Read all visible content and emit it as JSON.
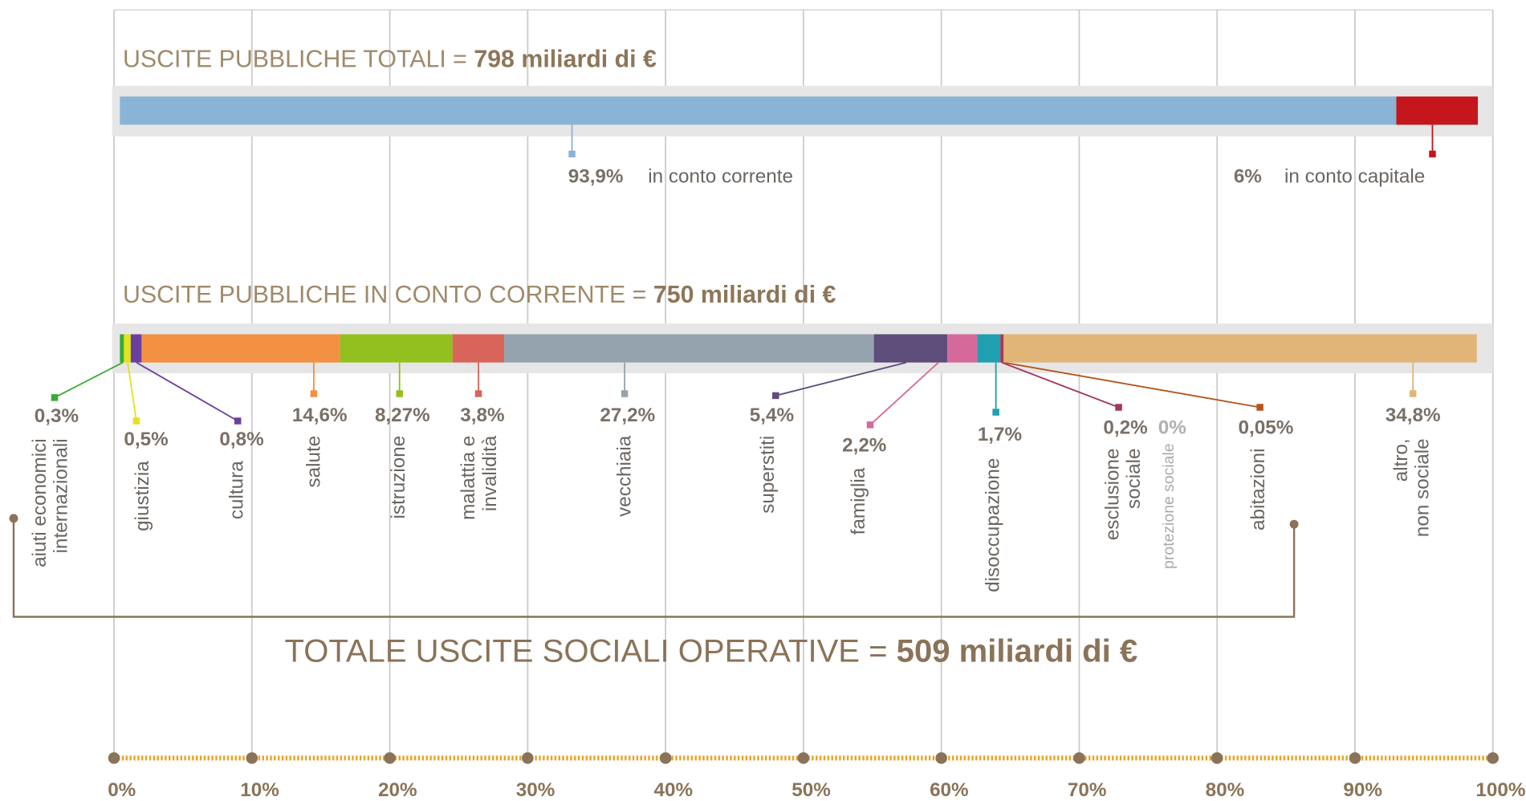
{
  "chart_data": [
    {
      "type": "stacked_bar",
      "title": "USCITE PUBBLICHE TOTALI =",
      "total": "798 miliardi di €",
      "xlim": [
        0,
        100
      ],
      "series": [
        {
          "name": "in conto corrente",
          "color": "#8ab4d6",
          "values": [
            93.9
          ],
          "value_labels": [
            "93,9%"
          ]
        },
        {
          "name": "in conto capitale",
          "color": "#c4161c",
          "values": [
            6
          ],
          "value_labels": [
            "6%"
          ]
        }
      ]
    },
    {
      "type": "stacked_bar",
      "title": "USCITE PUBBLICHE IN CONTO CORRENTE =",
      "total": "750 miliardi di €",
      "xlim": [
        0,
        100
      ],
      "xticks": [
        {
          "value": 0,
          "label": "0%"
        },
        {
          "value": 10,
          "label": "10%"
        },
        {
          "value": 20,
          "label": "20%"
        },
        {
          "value": 30,
          "label": "30%"
        },
        {
          "value": 40,
          "label": "40%"
        },
        {
          "value": 50,
          "label": "50%"
        },
        {
          "value": 60,
          "label": "60%"
        },
        {
          "value": 70,
          "label": "70%"
        },
        {
          "value": 80,
          "label": "80%"
        },
        {
          "value": 90,
          "label": "90%"
        },
        {
          "value": 100,
          "label": "100%"
        }
      ],
      "series": [
        {
          "name": "aiuti economici\ninternazionali",
          "color": "#3aaa35",
          "values": [
            0.3
          ],
          "value_labels": [
            "0,3%"
          ]
        },
        {
          "name": "giustizia",
          "color": "#e3e21d",
          "values": [
            0.5
          ],
          "value_labels": [
            "0,5%"
          ]
        },
        {
          "name": "cultura",
          "color": "#6b3fa0",
          "values": [
            0.8
          ],
          "value_labels": [
            "0,8%"
          ]
        },
        {
          "name": "salute",
          "color": "#f39041",
          "values": [
            14.6
          ],
          "value_labels": [
            "14,6%"
          ]
        },
        {
          "name": "istruzione",
          "color": "#93c01f",
          "values": [
            8.27
          ],
          "value_labels": [
            "8,27%"
          ]
        },
        {
          "name": "malattia e\ninvalidità",
          "color": "#d9645a",
          "values": [
            3.8
          ],
          "value_labels": [
            "3,8%"
          ]
        },
        {
          "name": "vecchiaia",
          "color": "#94a3ad",
          "values": [
            27.2
          ],
          "value_labels": [
            "27,2%"
          ]
        },
        {
          "name": "superstiti",
          "color": "#5e4c7a",
          "values": [
            5.4
          ],
          "value_labels": [
            "5,4%"
          ]
        },
        {
          "name": "famiglia",
          "color": "#d4699a",
          "values": [
            2.2
          ],
          "value_labels": [
            "2,2%"
          ]
        },
        {
          "name": "disoccupazione",
          "color": "#1fa0b0",
          "values": [
            1.7
          ],
          "value_labels": [
            "1,7%"
          ]
        },
        {
          "name": "esclusione\nsociale",
          "color": "#a2385f",
          "values": [
            0.2
          ],
          "value_labels": [
            "0,2%"
          ]
        },
        {
          "name": "protezione sociale",
          "color": "#a8a8a8",
          "values": [
            0
          ],
          "value_labels": [
            "0%"
          ]
        },
        {
          "name": "abitazioni",
          "color": "#b5541b",
          "values": [
            0.05
          ],
          "value_labels": [
            "0,05%"
          ]
        },
        {
          "name": "altro,\nnon sociale",
          "color": "#e0b577",
          "values": [
            34.8
          ],
          "value_labels": [
            "34,8%"
          ]
        }
      ]
    }
  ],
  "footer": {
    "title": "TOTALE USCITE SOCIALI OPERATIVE =",
    "total": "509 miliardi di €"
  }
}
